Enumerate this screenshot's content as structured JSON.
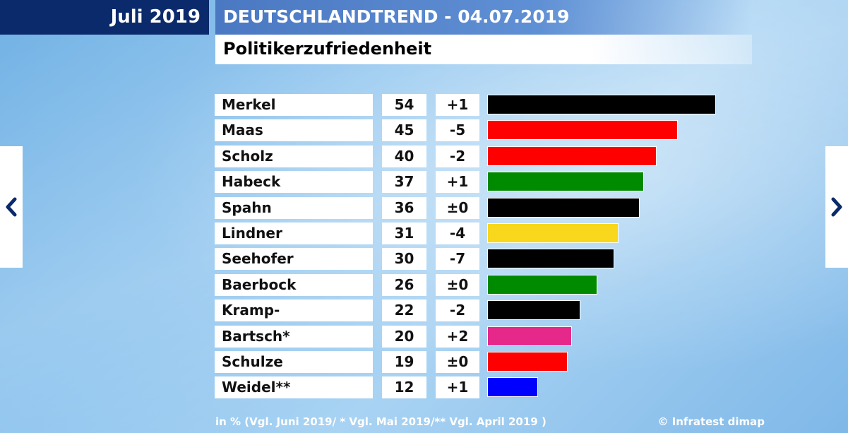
{
  "header": {
    "month": "Juli 2019",
    "title": "DEUTSCHLANDTREND - 04.07.2019",
    "subtitle": "Politikerzufriedenheit"
  },
  "footer": {
    "note": "in % (Vgl. Juni 2019/ * Vgl. Mai 2019/** Vgl. April 2019 )",
    "source": "© Infratest dimap"
  },
  "icons": {
    "prev": "chevron-left-icon",
    "next": "chevron-right-icon"
  },
  "chart_data": {
    "type": "bar",
    "orientation": "horizontal",
    "title": "Politikerzufriedenheit",
    "xlim": [
      0,
      60
    ],
    "categories": [
      "Merkel",
      "Maas",
      "Scholz",
      "Habeck",
      "Spahn",
      "Lindner",
      "Seehofer",
      "Baerbock",
      "Kramp-Karrenbauer",
      "Bartsch*",
      "Schulze",
      "Weidel**"
    ],
    "values": [
      54,
      45,
      40,
      37,
      36,
      31,
      30,
      26,
      22,
      20,
      19,
      12
    ],
    "changes": [
      "+1",
      "-5",
      "-2",
      "+1",
      "±0",
      "-4",
      "-7",
      "±0",
      "-2",
      "+2",
      "±0",
      "+1"
    ],
    "colors": [
      "#000000",
      "#ff0000",
      "#ff0000",
      "#008a00",
      "#000000",
      "#f9d71c",
      "#000000",
      "#008a00",
      "#000000",
      "#e6288a",
      "#ff0000",
      "#0000ff"
    ]
  }
}
